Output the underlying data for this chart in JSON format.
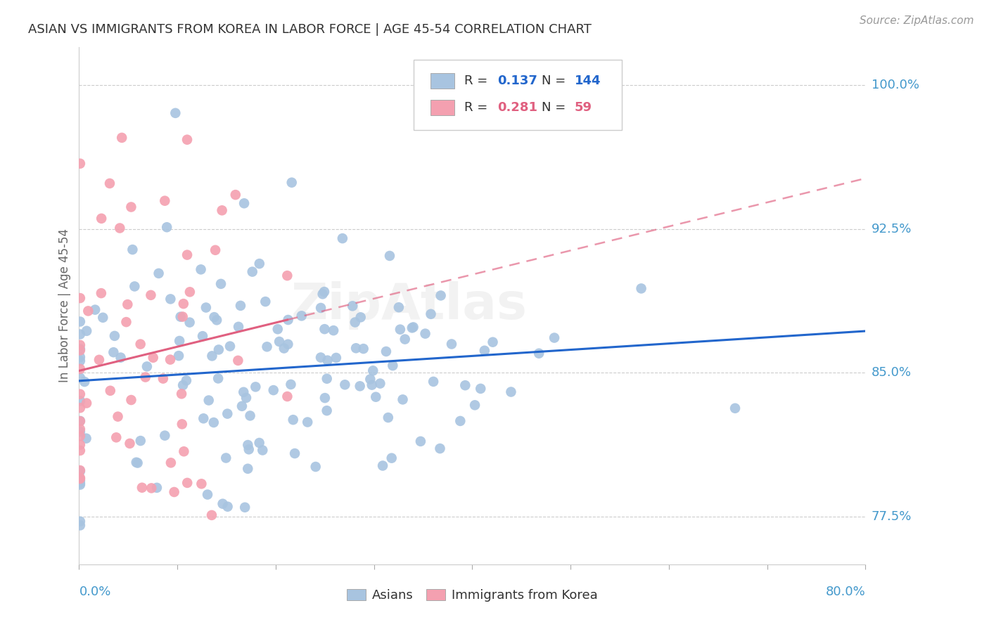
{
  "title": "ASIAN VS IMMIGRANTS FROM KOREA IN LABOR FORCE | AGE 45-54 CORRELATION CHART",
  "source": "Source: ZipAtlas.com",
  "ylabel": "In Labor Force | Age 45-54",
  "xlim": [
    0.0,
    0.8
  ],
  "ylim": [
    0.75,
    1.02
  ],
  "yticks": [
    0.775,
    0.85,
    0.925,
    1.0
  ],
  "ytick_labels": [
    "77.5%",
    "85.0%",
    "92.5%",
    "100.0%"
  ],
  "asian_R": 0.137,
  "asian_N": 144,
  "korean_R": 0.281,
  "korean_N": 59,
  "asian_color": "#a8c4e0",
  "korean_color": "#f4a0b0",
  "asian_line_color": "#2266cc",
  "korean_line_color": "#e06080",
  "background_color": "#ffffff",
  "grid_color": "#cccccc",
  "axis_label_color": "#4499cc",
  "watermark": "ZipAtlas",
  "title_fontsize": 13,
  "source_fontsize": 11,
  "tick_fontsize": 13,
  "legend_fontsize": 13
}
